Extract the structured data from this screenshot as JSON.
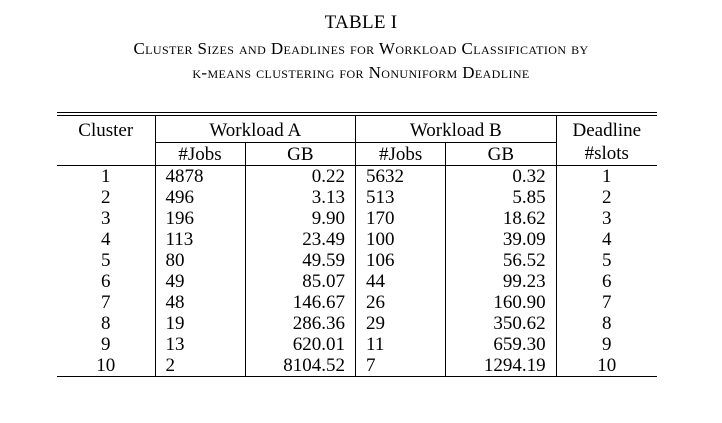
{
  "table_label": "TABLE I",
  "caption_line1": "Cluster Sizes and Deadlines for Workload Classification by",
  "caption_line2": "k-means clustering for Nonuniform Deadline",
  "headers": {
    "cluster": "Cluster",
    "workload_a": "Workload A",
    "workload_b": "Workload B",
    "deadline": "Deadline",
    "jobs_a": "#Jobs",
    "gb_a": "GB",
    "jobs_b": "#Jobs",
    "gb_b": "GB",
    "slots": "#slots"
  },
  "rows": [
    {
      "cluster": "1",
      "a_jobs": "4878",
      "a_gb": "0.22",
      "b_jobs": "5632",
      "b_gb": "0.32",
      "deadline": "1"
    },
    {
      "cluster": "2",
      "a_jobs": "496",
      "a_gb": "3.13",
      "b_jobs": "513",
      "b_gb": "5.85",
      "deadline": "2"
    },
    {
      "cluster": "3",
      "a_jobs": "196",
      "a_gb": "9.90",
      "b_jobs": "170",
      "b_gb": "18.62",
      "deadline": "3"
    },
    {
      "cluster": "4",
      "a_jobs": "113",
      "a_gb": "23.49",
      "b_jobs": "100",
      "b_gb": "39.09",
      "deadline": "4"
    },
    {
      "cluster": "5",
      "a_jobs": "80",
      "a_gb": "49.59",
      "b_jobs": "106",
      "b_gb": "56.52",
      "deadline": "5"
    },
    {
      "cluster": "6",
      "a_jobs": "49",
      "a_gb": "85.07",
      "b_jobs": "44",
      "b_gb": "99.23",
      "deadline": "6"
    },
    {
      "cluster": "7",
      "a_jobs": "48",
      "a_gb": "146.67",
      "b_jobs": "26",
      "b_gb": "160.90",
      "deadline": "7"
    },
    {
      "cluster": "8",
      "a_jobs": "19",
      "a_gb": "286.36",
      "b_jobs": "29",
      "b_gb": "350.62",
      "deadline": "8"
    },
    {
      "cluster": "9",
      "a_jobs": "13",
      "a_gb": "620.01",
      "b_jobs": "11",
      "b_gb": "659.30",
      "deadline": "9"
    },
    {
      "cluster": "10",
      "a_jobs": "2",
      "a_gb": "8104.52",
      "b_jobs": "7",
      "b_gb": "1294.19",
      "deadline": "10"
    }
  ]
}
